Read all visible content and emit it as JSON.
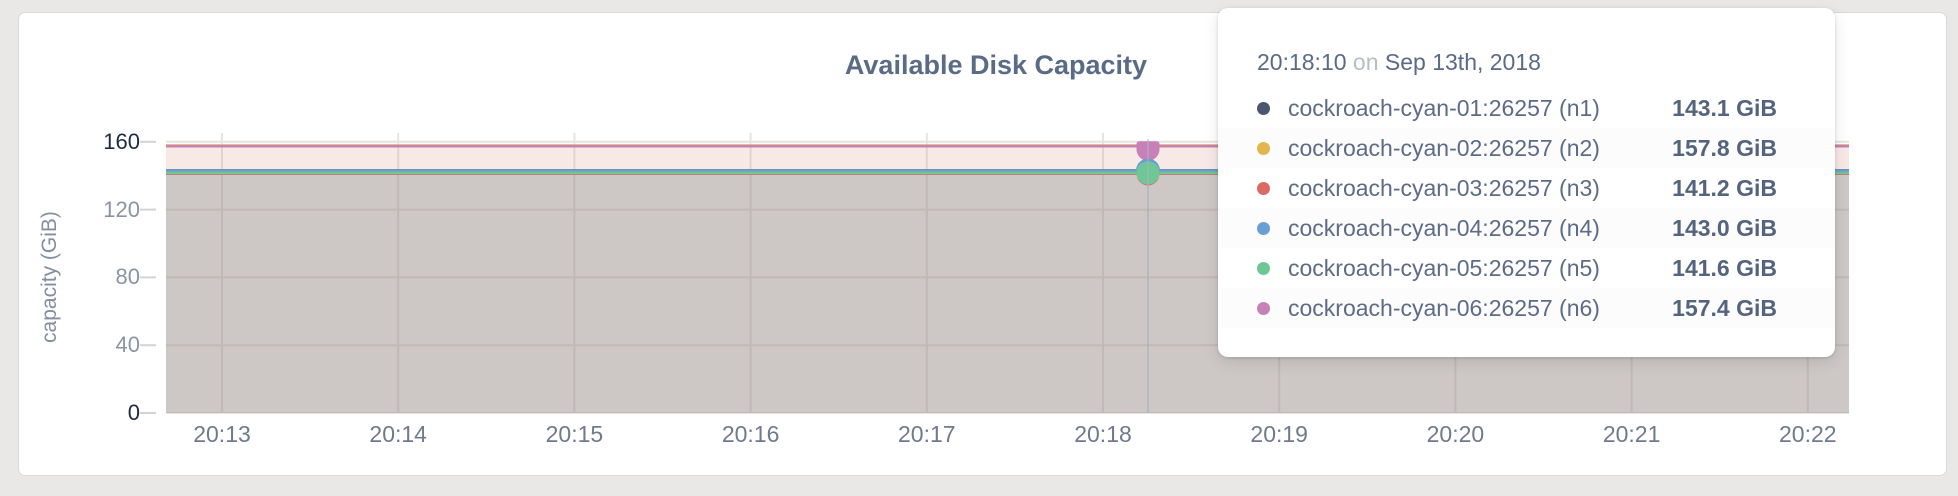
{
  "tooltip": {
    "time": "20:18:10",
    "on": "on",
    "date": "Sep 13th, 2018"
  },
  "chart_data": {
    "type": "area",
    "title": "Available Disk Capacity",
    "xlabel": "",
    "ylabel": "capacity (GiB)",
    "ylim": [
      0,
      165
    ],
    "grid": true,
    "legend_position": "hover-tooltip",
    "x_tick_labels": [
      "20:13",
      "20:14",
      "20:15",
      "20:16",
      "20:17",
      "20:18",
      "20:19",
      "20:20",
      "20:21",
      "20:22"
    ],
    "y_ticks": [
      0,
      40,
      80,
      120,
      160
    ],
    "hover_point": {
      "time": "20:18:10",
      "date": "Sep 13th, 2018"
    },
    "series": [
      {
        "name": "cockroach-cyan-01:26257 (n1)",
        "value_gib": 143.1,
        "value_label": "143.1 GiB",
        "color": "#49586f"
      },
      {
        "name": "cockroach-cyan-02:26257 (n2)",
        "value_gib": 157.8,
        "value_label": "157.8 GiB",
        "color": "#e3b54e"
      },
      {
        "name": "cockroach-cyan-03:26257 (n3)",
        "value_gib": 141.2,
        "value_label": "141.2 GiB",
        "color": "#dd6a62"
      },
      {
        "name": "cockroach-cyan-04:26257 (n4)",
        "value_gib": 143.0,
        "value_label": "143.0 GiB",
        "color": "#6b9ed2"
      },
      {
        "name": "cockroach-cyan-05:26257 (n5)",
        "value_gib": 141.6,
        "value_label": "141.6 GiB",
        "color": "#6fc795"
      },
      {
        "name": "cockroach-cyan-06:26257 (n6)",
        "value_gib": 157.4,
        "value_label": "157.4 GiB",
        "color": "#c780b8"
      }
    ],
    "note": "All six series are flat horizontal lines across the whole time window"
  }
}
